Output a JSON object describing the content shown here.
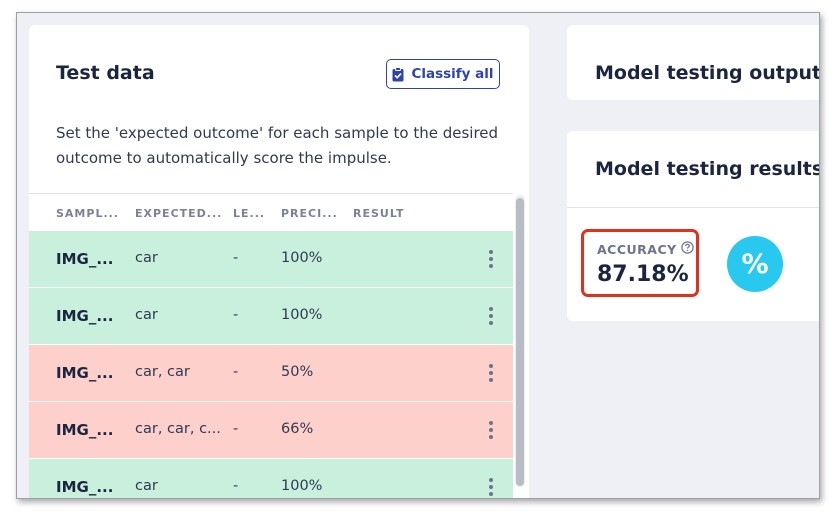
{
  "test_data": {
    "title": "Test data",
    "classify_all_label": "Classify all",
    "description": "Set the 'expected outcome' for each sample to the desired outcome to automatically score the impulse.",
    "columns": {
      "sample": "SAMPL...",
      "expected": "EXPECTED...",
      "length": "LE...",
      "precision": "PRECI...",
      "result": "RESULT"
    },
    "rows": [
      {
        "sample": "IMG_...",
        "expected": "car",
        "length": "-",
        "precision": "100%",
        "status": "pass"
      },
      {
        "sample": "IMG_...",
        "expected": "car",
        "length": "-",
        "precision": "100%",
        "status": "pass"
      },
      {
        "sample": "IMG_...",
        "expected": "car, car",
        "length": "-",
        "precision": "50%",
        "status": "fail"
      },
      {
        "sample": "IMG_...",
        "expected": "car, car, c...",
        "length": "-",
        "precision": "66%",
        "status": "fail"
      },
      {
        "sample": "IMG_...",
        "expected": "car",
        "length": "-",
        "precision": "100%",
        "status": "pass"
      }
    ]
  },
  "model_testing_output": {
    "title": "Model testing output"
  },
  "model_testing_results": {
    "title": "Model testing results",
    "accuracy_label": "ACCURACY",
    "accuracy_value": "87.18%",
    "percent_symbol": "%"
  },
  "colors": {
    "pass_row": "#c9f0dc",
    "fail_row": "#fdd0cc",
    "accent": "#2d44b0",
    "highlight": "#e0311f",
    "percent_badge": "#29c9ef"
  },
  "icons": {
    "classify": "clipboard-check-icon",
    "help": "question-circle-icon",
    "row_menu": "kebab-menu-icon"
  }
}
